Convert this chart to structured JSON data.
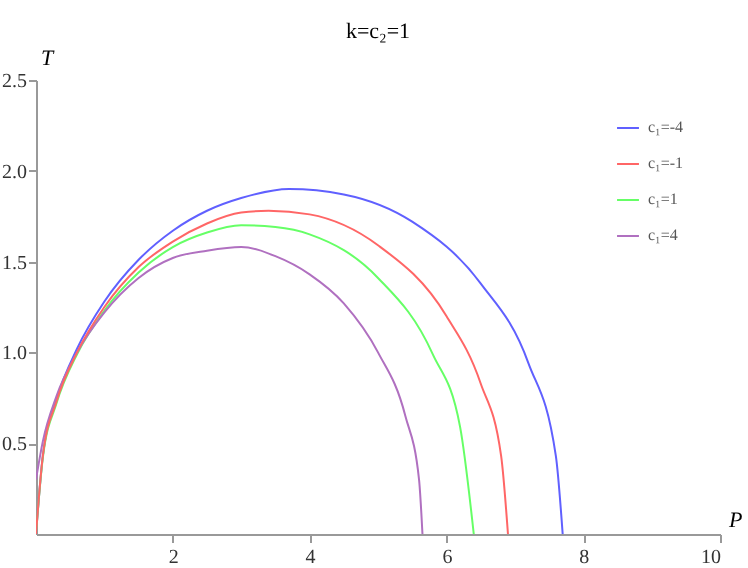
{
  "chart_data": {
    "type": "line",
    "title": "k=c₂=1",
    "xlabel": "P",
    "ylabel": "T",
    "xlim": [
      0,
      10
    ],
    "xticks": [
      2,
      4,
      6,
      8,
      10
    ],
    "ylim": [
      0,
      2.5
    ],
    "yticks": [
      0.5,
      {
        "value": 1,
        "label": "1.0"
      },
      1.5,
      {
        "value": 2,
        "label": "2.0"
      },
      2.5
    ],
    "grid": false,
    "legend": "top right",
    "marker": "none",
    "line_style": "solid",
    "series": [
      {
        "name": "c₁=-4",
        "color": "#6060ff",
        "x": [
          0,
          0.1,
          0.3,
          0.6,
          1,
          1.5,
          2,
          2.5,
          3,
          3.7,
          4.5,
          5.5,
          6.5,
          7.2,
          7.6,
          7.7
        ],
        "values": [
          0,
          0.43,
          0.74,
          1.02,
          1.28,
          1.51,
          1.67,
          1.78,
          1.85,
          1.9,
          1.87,
          1.72,
          1.38,
          0.94,
          0.43,
          0
        ]
      },
      {
        "name": "c₁=-1",
        "color": "#ff6666",
        "x": [
          0,
          0.1,
          0.3,
          0.6,
          1,
          1.5,
          2,
          2.5,
          3,
          3.4,
          4,
          5,
          6,
          6.5,
          6.8,
          6.9
        ],
        "values": [
          0,
          0.43,
          0.73,
          1.0,
          1.25,
          1.47,
          1.61,
          1.71,
          1.77,
          1.78,
          1.76,
          1.59,
          1.2,
          0.83,
          0.43,
          0
        ]
      },
      {
        "name": "c₁=1",
        "color": "#66ff66",
        "x": [
          0,
          0.1,
          0.3,
          0.6,
          1,
          1.5,
          2,
          2.5,
          3,
          3.5,
          4,
          5,
          5.8,
          6.2,
          6.4
        ],
        "values": [
          0,
          0.42,
          0.72,
          0.99,
          1.23,
          1.44,
          1.58,
          1.66,
          1.7,
          1.69,
          1.65,
          1.41,
          0.99,
          0.59,
          0
        ]
      },
      {
        "name": "c₁=4",
        "color": "#b070c0",
        "x": [
          0,
          0.1,
          0.3,
          0.6,
          1,
          1.5,
          2,
          2.5,
          3,
          3.5,
          4,
          4.5,
          5,
          5.4,
          5.6,
          5.65
        ],
        "values": [
          0.3,
          0.51,
          0.76,
          1.0,
          1.22,
          1.41,
          1.52,
          1.56,
          1.58,
          1.53,
          1.43,
          1.27,
          1.0,
          0.65,
          0.3,
          0
        ]
      }
    ]
  }
}
